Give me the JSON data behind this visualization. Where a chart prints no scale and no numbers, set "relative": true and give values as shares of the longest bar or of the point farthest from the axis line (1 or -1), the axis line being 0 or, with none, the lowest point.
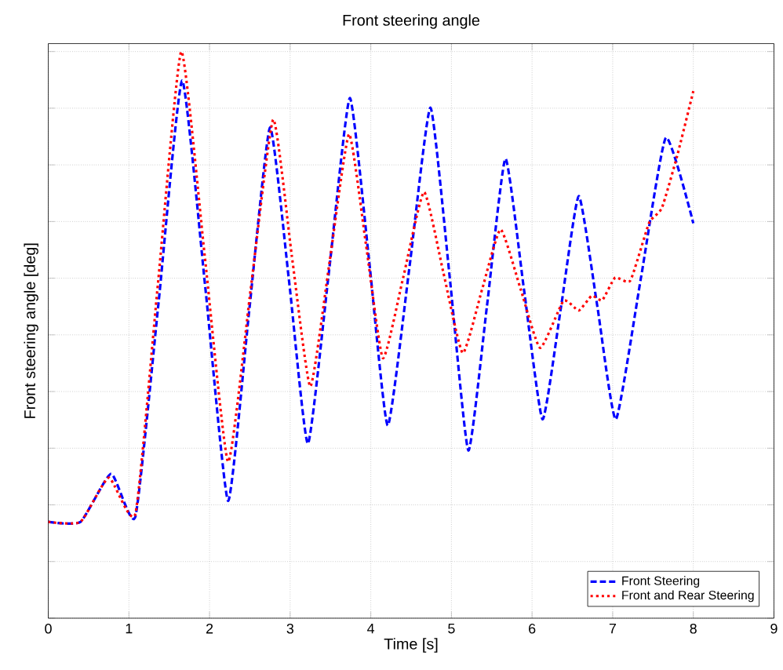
{
  "chart_data": {
    "type": "line",
    "title": "Front steering angle",
    "xlabel": "Time [s]",
    "ylabel": "Front steering angle [deg]",
    "relative": true,
    "xlim": [
      0,
      9
    ],
    "xticks": [
      0,
      1,
      2,
      3,
      4,
      5,
      6,
      7,
      8,
      9
    ],
    "grid": true,
    "legend": "bottom right",
    "series": [
      {
        "name": "Front Steering",
        "color": "#0000ff",
        "line_style": "dashed",
        "x": [
          0,
          0.4,
          0.78,
          1.08,
          1.37,
          1.66,
          1.95,
          2.23,
          2.49,
          2.75,
          2.99,
          3.22,
          3.48,
          3.74,
          3.98,
          4.21,
          4.48,
          4.74,
          4.98,
          5.21,
          5.44,
          5.67,
          5.9,
          6.13,
          6.36,
          6.58,
          6.81,
          7.04,
          7.35,
          7.66,
          8.0
        ],
        "values": [
          0.17,
          0.17,
          0.255,
          0.179,
          0.56,
          0.949,
          0.58,
          0.207,
          0.54,
          0.866,
          0.59,
          0.308,
          0.61,
          0.918,
          0.63,
          0.34,
          0.62,
          0.901,
          0.6,
          0.296,
          0.55,
          0.811,
          0.58,
          0.351,
          0.55,
          0.745,
          0.55,
          0.351,
          0.6,
          0.848,
          0.697
        ]
      },
      {
        "name": "Front and Rear Steering",
        "color": "#ff0000",
        "line_style": "dotted",
        "x": [
          0,
          0.4,
          0.75,
          1.08,
          1.36,
          1.65,
          1.94,
          2.23,
          2.51,
          2.79,
          3.02,
          3.25,
          3.49,
          3.73,
          3.94,
          4.15,
          4.4,
          4.66,
          4.9,
          5.14,
          5.38,
          5.61,
          5.86,
          6.1,
          6.39,
          6.58,
          6.74,
          6.87,
          7.03,
          7.22,
          7.45,
          7.61,
          7.8,
          8.0
        ],
        "values": [
          0.17,
          0.17,
          0.248,
          0.184,
          0.59,
          1.0,
          0.64,
          0.276,
          0.58,
          0.88,
          0.64,
          0.409,
          0.63,
          0.854,
          0.66,
          0.459,
          0.6,
          0.752,
          0.61,
          0.468,
          0.58,
          0.686,
          0.58,
          0.477,
          0.56,
          0.543,
          0.569,
          0.561,
          0.601,
          0.596,
          0.697,
          0.724,
          0.816,
          0.93
        ]
      }
    ]
  }
}
